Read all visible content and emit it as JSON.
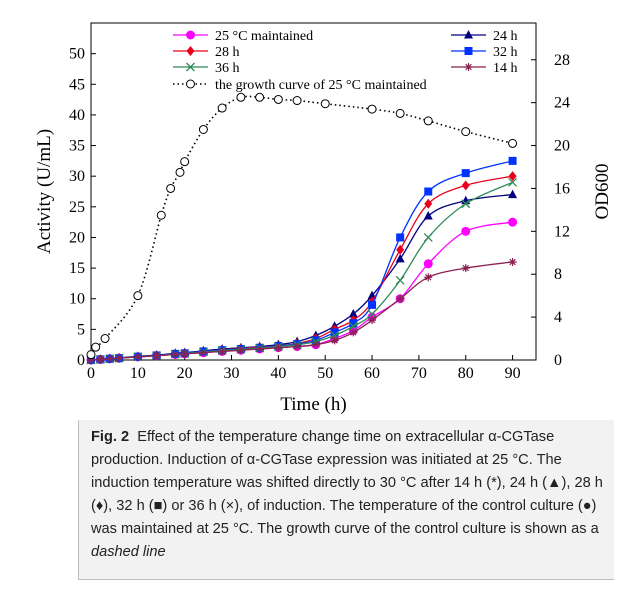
{
  "chart_data": {
    "type": "line",
    "xlabel": "Time (h)",
    "ylabel": "Activity (U/mL)",
    "y2label": "OD600",
    "xlim": [
      0,
      95
    ],
    "ylim": [
      0,
      55
    ],
    "y2lim": [
      0,
      31.43
    ],
    "xticks": [
      0,
      10,
      20,
      30,
      40,
      50,
      60,
      70,
      80,
      90
    ],
    "yticks": [
      0,
      5,
      10,
      15,
      20,
      25,
      30,
      35,
      40,
      45,
      50
    ],
    "y2ticks": [
      0,
      4,
      8,
      12,
      16,
      20,
      24,
      28
    ],
    "grid": false,
    "legend_placement": "top",
    "series": [
      {
        "name": "25 °C maintained",
        "axis": "left",
        "color": "#ff00ff",
        "marker": "circle",
        "x": [
          0,
          2,
          4,
          6,
          10,
          14,
          18,
          20,
          24,
          28,
          32,
          36,
          40,
          44,
          48,
          52,
          56,
          60,
          66,
          72,
          80,
          90
        ],
        "y": [
          0,
          0.1,
          0.2,
          0.3,
          0.5,
          0.7,
          0.9,
          1.0,
          1.2,
          1.4,
          1.6,
          1.8,
          2.0,
          2.2,
          2.5,
          3.5,
          4.8,
          7.0,
          10.0,
          15.7,
          21.0,
          22.5
        ]
      },
      {
        "name": "24 h",
        "axis": "left",
        "color": "#000080",
        "marker": "triangle",
        "x": [
          0,
          2,
          4,
          6,
          10,
          14,
          18,
          20,
          24,
          28,
          32,
          36,
          40,
          44,
          48,
          52,
          56,
          60,
          66,
          72,
          80,
          90
        ],
        "y": [
          0,
          0.15,
          0.25,
          0.35,
          0.6,
          0.8,
          1.1,
          1.2,
          1.5,
          1.8,
          2.0,
          2.2,
          2.5,
          3.0,
          4.0,
          5.5,
          7.5,
          10.5,
          16.5,
          23.5,
          26.0,
          27.0
        ]
      },
      {
        "name": "28 h",
        "axis": "left",
        "color": "#e8001c",
        "marker": "diamond",
        "x": [
          0,
          2,
          4,
          6,
          10,
          14,
          18,
          20,
          24,
          28,
          32,
          36,
          40,
          44,
          48,
          52,
          56,
          60,
          66,
          72,
          80,
          90
        ],
        "y": [
          0,
          0.1,
          0.2,
          0.3,
          0.55,
          0.75,
          1.0,
          1.1,
          1.4,
          1.6,
          1.9,
          2.1,
          2.3,
          2.7,
          3.5,
          5.0,
          6.5,
          9.5,
          18.0,
          25.5,
          28.5,
          30.0
        ]
      },
      {
        "name": "32 h",
        "axis": "left",
        "color": "#0033ff",
        "marker": "square",
        "x": [
          0,
          2,
          4,
          6,
          10,
          14,
          18,
          20,
          24,
          28,
          32,
          36,
          40,
          44,
          48,
          52,
          56,
          60,
          66,
          72,
          80,
          90
        ],
        "y": [
          0,
          0.1,
          0.2,
          0.3,
          0.55,
          0.75,
          1.0,
          1.1,
          1.4,
          1.6,
          1.8,
          2.0,
          2.3,
          2.6,
          3.2,
          4.5,
          6.0,
          9.0,
          20.0,
          27.5,
          30.5,
          32.5
        ]
      },
      {
        "name": "36 h",
        "axis": "left",
        "color": "#2e8b57",
        "marker": "x",
        "x": [
          0,
          2,
          4,
          6,
          10,
          14,
          18,
          20,
          24,
          28,
          32,
          36,
          40,
          44,
          48,
          52,
          56,
          60,
          66,
          72,
          80,
          90
        ],
        "y": [
          0,
          0.1,
          0.2,
          0.3,
          0.5,
          0.7,
          0.95,
          1.05,
          1.3,
          1.55,
          1.75,
          1.95,
          2.2,
          2.5,
          3.0,
          4.0,
          5.5,
          7.5,
          13.0,
          20.0,
          25.5,
          29.0
        ]
      },
      {
        "name": "14 h",
        "axis": "left",
        "color": "#8b2252",
        "marker": "star",
        "x": [
          0,
          2,
          4,
          6,
          10,
          14,
          18,
          20,
          24,
          28,
          32,
          36,
          40,
          44,
          48,
          52,
          56,
          60,
          66,
          72,
          80,
          90
        ],
        "y": [
          0,
          0.1,
          0.2,
          0.3,
          0.5,
          0.7,
          0.9,
          1.0,
          1.2,
          1.4,
          1.6,
          1.8,
          2.0,
          2.2,
          2.5,
          3.2,
          4.5,
          6.5,
          10.0,
          13.5,
          15.0,
          16.0
        ]
      },
      {
        "name": "the growth curve of 25 °C maintained",
        "axis": "right",
        "color": "#000000",
        "marker": "open-circle",
        "dashed": true,
        "x": [
          0,
          1,
          3,
          10,
          15,
          17,
          19,
          20,
          24,
          28,
          32,
          36,
          40,
          44,
          50,
          60,
          66,
          72,
          80,
          90
        ],
        "y": [
          0.5,
          1.2,
          2.0,
          6.0,
          13.5,
          16.0,
          17.5,
          18.5,
          21.5,
          23.5,
          24.5,
          24.5,
          24.3,
          24.2,
          23.9,
          23.4,
          23.0,
          22.3,
          21.3,
          20.2
        ]
      }
    ]
  },
  "caption": {
    "label": "Fig. 2",
    "text1": "Effect of the temperature change time on extracellular α-CGTase production. Induction of α-CGTase expression was initiated at 25 °C. The induction temperature was shifted directly to 30 °C after 14 h (*), 24 h (▲), 28 h (♦), 32 h (■) or 36 h (×), of induction. The temperature of the control culture (●) was maintained at 25 °C. The growth curve of the control culture is shown as a ",
    "italic": "dashed line"
  }
}
